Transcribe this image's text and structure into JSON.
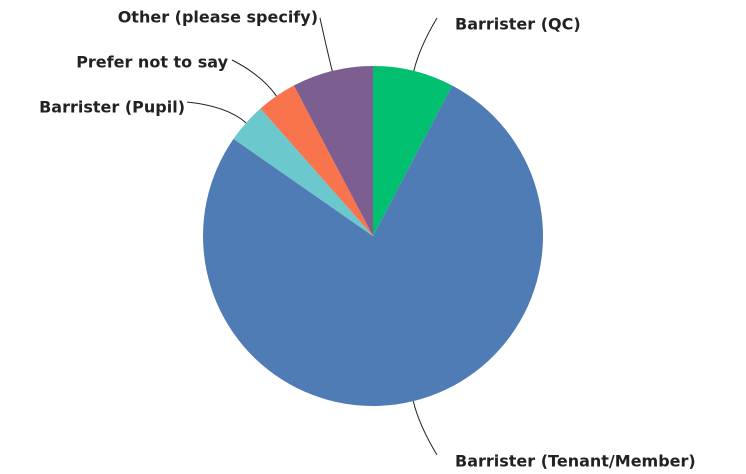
{
  "chart_data": {
    "type": "pie",
    "categories": [
      "Barrister (QC)",
      "Barrister (Tenant/Member)",
      "Barrister (Pupil)",
      "Prefer not to say",
      "Other (please specify)"
    ],
    "values": [
      7.7,
      76.9,
      3.8,
      3.8,
      7.7
    ],
    "colors": [
      "#00bf6f",
      "#507cb6",
      "#6bc8cd",
      "#f9744c",
      "#7d5e90"
    ]
  }
}
